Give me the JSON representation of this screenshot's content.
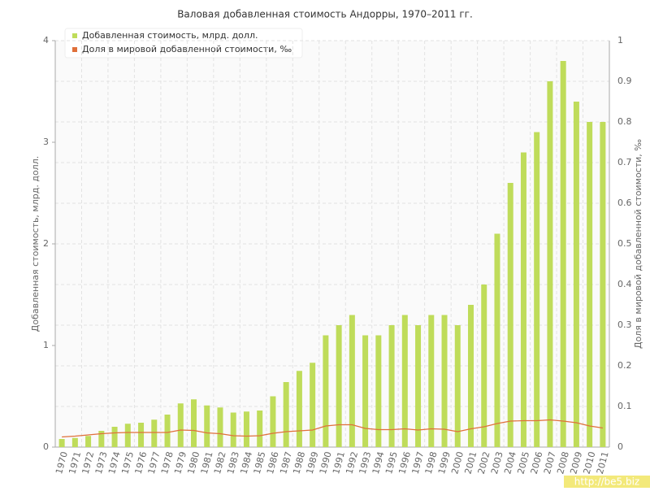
{
  "chart_data": {
    "type": "bar",
    "title": "Валовая добавленная стоимость Андорры, 1970–2011 гг.",
    "y_label": "Добавленная стоимость, млрд. долл.",
    "y2_label": "Доля в мировой добавленной стоимости, ‰",
    "watermark": "http://be5.biz",
    "categories": [
      "1970",
      "1971",
      "1972",
      "1973",
      "1974",
      "1975",
      "1976",
      "1977",
      "1978",
      "1979",
      "1980",
      "1981",
      "1982",
      "1983",
      "1984",
      "1985",
      "1986",
      "1987",
      "1988",
      "1989",
      "1990",
      "1991",
      "1992",
      "1993",
      "1994",
      "1995",
      "1996",
      "1997",
      "1998",
      "1999",
      "2000",
      "2001",
      "2002",
      "2003",
      "2004",
      "2005",
      "2006",
      "2007",
      "2008",
      "2009",
      "2010",
      "2011"
    ],
    "series": [
      {
        "name": "Добавленная стоимость, млрд. долл.",
        "color": "#bfdc5a",
        "values": [
          0.08,
          0.09,
          0.11,
          0.16,
          0.2,
          0.23,
          0.24,
          0.27,
          0.32,
          0.43,
          0.47,
          0.41,
          0.39,
          0.34,
          0.35,
          0.36,
          0.5,
          0.64,
          0.75,
          0.83,
          1.1,
          1.2,
          1.3,
          1.1,
          1.1,
          1.2,
          1.3,
          1.2,
          1.3,
          1.3,
          1.2,
          1.4,
          1.6,
          2.1,
          2.6,
          2.9,
          3.1,
          3.6,
          3.8,
          3.4,
          3.2,
          3.2
        ]
      },
      {
        "name": "Доля в мировой добавленной стоимости, ‰",
        "color": "#e0703a",
        "axis": "y2",
        "values": [
          0.025,
          0.027,
          0.03,
          0.033,
          0.035,
          0.036,
          0.036,
          0.036,
          0.036,
          0.042,
          0.041,
          0.035,
          0.033,
          0.028,
          0.027,
          0.028,
          0.034,
          0.038,
          0.04,
          0.042,
          0.052,
          0.055,
          0.055,
          0.046,
          0.043,
          0.043,
          0.045,
          0.042,
          0.045,
          0.044,
          0.038,
          0.045,
          0.05,
          0.058,
          0.064,
          0.065,
          0.065,
          0.067,
          0.064,
          0.06,
          0.052,
          0.047
        ]
      }
    ],
    "ylim": [
      0,
      4
    ],
    "yticks": [
      0,
      1,
      2,
      3,
      4
    ],
    "y2lim": [
      0,
      1
    ],
    "y2ticks": [
      0,
      0.1,
      0.2,
      0.3,
      0.4,
      0.5,
      0.6,
      0.7,
      0.8,
      0.9,
      1
    ],
    "grid": true,
    "legend": "top-left"
  }
}
